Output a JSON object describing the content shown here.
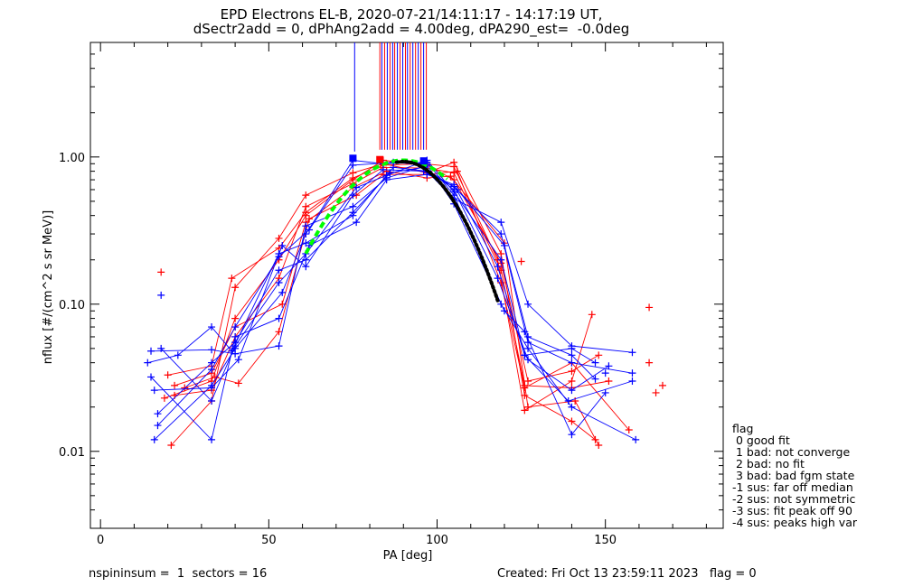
{
  "title_line1": "EPD Electrons EL-B, 2020-07-21/14:11:17 - 14:17:19 UT,",
  "title_line2": "dSectr2add = 0, dPhAng2add = 4.00deg, dPA290_est=  -0.0deg",
  "footer": {
    "left": "nspininsum =  1  sectors = 16",
    "right": "Created: Fri Oct 13 23:59:11 2023   flag = 0"
  },
  "legend": {
    "title": "flag",
    "items": [
      " 0 good fit",
      " 1 bad: not converge",
      " 2 bad: no fit",
      " 3 bad: bad fgm state",
      "-1 sus: far off median",
      "-2 sus: not symmetric",
      "-3 sus: fit peak off 90",
      "-4 sus: peaks high var"
    ]
  },
  "colors": {
    "red": "#ff0000",
    "blue": "#0000ff",
    "green": "#00ff00",
    "black": "#000000"
  },
  "chart_data": {
    "type": "line",
    "xlabel": "PA [deg]",
    "ylabel": "nflux [#/(cm^2 s sr MeV)]",
    "xlim": [
      -3,
      185
    ],
    "ylim": [
      0.003,
      6
    ],
    "ylog": true,
    "xticks": [
      0,
      50,
      100,
      150
    ],
    "xtick_labels": [
      "0",
      "50",
      "100",
      "150"
    ],
    "yticks": [
      0.01,
      0.1,
      1.0
    ],
    "ytick_labels": [
      "0.01",
      "0.10",
      "1.00"
    ],
    "series": [
      {
        "color": "red",
        "points": [
          [
            22,
            0.024
          ],
          [
            33,
            0.026
          ],
          [
            40,
            0.06
          ],
          [
            53,
            0.15
          ],
          [
            61,
            0.46
          ],
          [
            75,
            0.66
          ],
          [
            84,
            0.85
          ],
          [
            97,
            0.84
          ],
          [
            105,
            0.78
          ],
          [
            119,
            0.17
          ],
          [
            126,
            0.028
          ],
          [
            140,
            0.027
          ],
          [
            151,
            0.03
          ]
        ]
      },
      {
        "color": "red",
        "points": [
          [
            21,
            0.011
          ],
          [
            33,
            0.022
          ],
          [
            40,
            0.13
          ],
          [
            53,
            0.28
          ],
          [
            61,
            0.55
          ],
          [
            75,
            0.78
          ],
          [
            84,
            0.9
          ],
          [
            97,
            0.78
          ],
          [
            105,
            0.92
          ],
          [
            119,
            0.22
          ],
          [
            126,
            0.024
          ],
          [
            140,
            0.016
          ],
          [
            147,
            0.012
          ]
        ]
      },
      {
        "color": "red",
        "points": [
          [
            19,
            0.023
          ],
          [
            33,
            0.03
          ],
          [
            40,
            0.08
          ],
          [
            53,
            0.2
          ],
          [
            61,
            0.4
          ],
          [
            75,
            0.7
          ],
          [
            84,
            0.95
          ],
          [
            97,
            0.88
          ],
          [
            105,
            0.7
          ],
          [
            119,
            0.19
          ],
          [
            127,
            0.03
          ],
          [
            140,
            0.035
          ],
          [
            148,
            0.045
          ]
        ]
      },
      {
        "color": "red",
        "points": [
          [
            22,
            0.028
          ],
          [
            33,
            0.034
          ],
          [
            40,
            0.07
          ],
          [
            54,
            0.1
          ],
          [
            61,
            0.36
          ],
          [
            75,
            0.62
          ],
          [
            85,
            0.8
          ],
          [
            97,
            0.72
          ],
          [
            104,
            0.74
          ],
          [
            120,
            0.26
          ],
          [
            127,
            0.02
          ],
          [
            141,
            0.022
          ],
          [
            148,
            0.011
          ]
        ]
      },
      {
        "color": "red",
        "points": [
          [
            20,
            0.033
          ],
          [
            33,
            0.038
          ],
          [
            39,
            0.15
          ],
          [
            53,
            0.24
          ],
          [
            61,
            0.42
          ],
          [
            75,
            0.72
          ],
          [
            84,
            0.88
          ],
          [
            96,
            0.9
          ],
          [
            105,
            0.86
          ],
          [
            118,
            0.2
          ],
          [
            126,
            0.019
          ],
          [
            140,
            0.03
          ],
          [
            146,
            0.085
          ]
        ]
      },
      {
        "color": "red",
        "points": [
          [
            25,
            0.027
          ],
          [
            34,
            0.032
          ],
          [
            41,
            0.029
          ],
          [
            53,
            0.065
          ],
          [
            62,
            0.38
          ],
          [
            76,
            0.55
          ],
          [
            84,
            0.76
          ],
          [
            97,
            0.76
          ],
          [
            106,
            0.8
          ],
          [
            119,
            0.14
          ],
          [
            126,
            0.027
          ],
          [
            140,
            0.04
          ],
          [
            157,
            0.014
          ]
        ]
      },
      {
        "color": "blue",
        "points": [
          [
            14,
            0.04
          ],
          [
            23,
            0.045
          ],
          [
            33,
            0.07
          ],
          [
            39,
            0.048
          ],
          [
            53,
            0.22
          ],
          [
            61,
            0.26
          ],
          [
            75,
            0.4
          ],
          [
            87,
            0.85
          ],
          [
            97,
            0.8
          ],
          [
            105,
            0.52
          ],
          [
            119,
            0.36
          ],
          [
            127,
            0.1
          ],
          [
            140,
            0.052
          ],
          [
            158,
            0.047
          ]
        ]
      },
      {
        "color": "blue",
        "points": [
          [
            16,
            0.012
          ],
          [
            33,
            0.028
          ],
          [
            40,
            0.05
          ],
          [
            54,
            0.12
          ],
          [
            61,
            0.3
          ],
          [
            75,
            0.95
          ],
          [
            84,
            0.9
          ],
          [
            97,
            0.92
          ],
          [
            105,
            0.55
          ],
          [
            119,
            0.1
          ],
          [
            127,
            0.05
          ],
          [
            140,
            0.02
          ],
          [
            159,
            0.012
          ]
        ]
      },
      {
        "color": "blue",
        "points": [
          [
            17,
            0.018
          ],
          [
            33,
            0.04
          ],
          [
            40,
            0.055
          ],
          [
            53,
            0.17
          ],
          [
            61,
            0.2
          ],
          [
            75,
            0.42
          ],
          [
            86,
            0.78
          ],
          [
            96,
            0.85
          ],
          [
            106,
            0.6
          ],
          [
            120,
            0.25
          ],
          [
            127,
            0.06
          ],
          [
            140,
            0.045
          ],
          [
            147,
            0.031
          ]
        ]
      },
      {
        "color": "blue",
        "points": [
          [
            15,
            0.032
          ],
          [
            33,
            0.012
          ],
          [
            40,
            0.06
          ],
          [
            53,
            0.08
          ],
          [
            62,
            0.25
          ],
          [
            76,
            0.36
          ],
          [
            85,
            0.7
          ],
          [
            97,
            0.76
          ],
          [
            105,
            0.65
          ],
          [
            118,
            0.18
          ],
          [
            126,
            0.045
          ],
          [
            139,
            0.022
          ],
          [
            158,
            0.03
          ]
        ]
      },
      {
        "color": "blue",
        "points": [
          [
            16,
            0.026
          ],
          [
            33,
            0.027
          ],
          [
            41,
            0.042
          ],
          [
            54,
            0.25
          ],
          [
            61,
            0.18
          ],
          [
            75,
            0.55
          ],
          [
            84,
            0.82
          ],
          [
            96,
            0.8
          ],
          [
            105,
            0.63
          ],
          [
            119,
            0.3
          ],
          [
            127,
            0.055
          ],
          [
            140,
            0.04
          ],
          [
            158,
            0.034
          ]
        ]
      },
      {
        "color": "blue",
        "points": [
          [
            17,
            0.015
          ],
          [
            33,
            0.036
          ],
          [
            40,
            0.07
          ],
          [
            53,
            0.21
          ],
          [
            62,
            0.32
          ],
          [
            75,
            0.88
          ],
          [
            87,
            0.92
          ],
          [
            97,
            0.88
          ],
          [
            105,
            0.48
          ],
          [
            120,
            0.09
          ],
          [
            126,
            0.065
          ],
          [
            140,
            0.013
          ],
          [
            150,
            0.025
          ]
        ]
      },
      {
        "color": "blue",
        "points": [
          [
            18,
            0.05
          ],
          [
            33,
            0.022
          ],
          [
            40,
            0.052
          ],
          [
            53,
            0.14
          ],
          [
            61,
            0.22
          ],
          [
            76,
            0.62
          ],
          [
            85,
            0.75
          ],
          [
            97,
            0.95
          ],
          [
            105,
            0.58
          ],
          [
            119,
            0.2
          ],
          [
            126,
            0.045
          ],
          [
            140,
            0.05
          ],
          [
            147,
            0.04
          ]
        ]
      },
      {
        "color": "blue",
        "points": [
          [
            15,
            0.048
          ],
          [
            33,
            0.049
          ],
          [
            40,
            0.046
          ],
          [
            53,
            0.052
          ],
          [
            61,
            0.34
          ],
          [
            75,
            0.46
          ],
          [
            85,
            0.72
          ],
          [
            96,
            0.86
          ],
          [
            105,
            0.6
          ],
          [
            118,
            0.15
          ],
          [
            127,
            0.042
          ],
          [
            140,
            0.026
          ],
          [
            151,
            0.038
          ]
        ]
      }
    ],
    "outlier_markers": [
      {
        "color": "red",
        "x": 18,
        "y": 0.165
      },
      {
        "color": "blue",
        "x": 18,
        "y": 0.115
      },
      {
        "color": "red",
        "x": 163,
        "y": 0.095
      },
      {
        "color": "red",
        "x": 163,
        "y": 0.04
      },
      {
        "color": "red",
        "x": 167,
        "y": 0.028
      },
      {
        "color": "red",
        "x": 165,
        "y": 0.025
      },
      {
        "color": "blue",
        "x": 150,
        "y": 0.034
      },
      {
        "color": "red",
        "x": 125,
        "y": 0.195
      }
    ],
    "fit_curves": [
      {
        "color": "green",
        "style": "dashed",
        "x_range": [
          61,
          103
        ],
        "peak_x": 90,
        "peak_y": 0.95,
        "width": 24
      },
      {
        "color": "black",
        "style": "dotted",
        "x_range": [
          88,
          118
        ],
        "peak_x": 90,
        "peak_y": 0.93,
        "width": 19
      }
    ],
    "peak_markers": [
      {
        "color": "red",
        "x": 83,
        "y": 0.96
      },
      {
        "color": "blue",
        "x": 75,
        "y": 0.98
      },
      {
        "color": "blue",
        "x": 96,
        "y": 0.94
      }
    ],
    "vertical_markers": {
      "y_from": 1.12,
      "lines": [
        {
          "x": 75.5,
          "color": "blue",
          "full": true
        },
        {
          "x": 83.0,
          "color": "red"
        },
        {
          "x": 83.6,
          "color": "blue"
        },
        {
          "x": 84.4,
          "color": "red"
        },
        {
          "x": 85.2,
          "color": "blue"
        },
        {
          "x": 86.0,
          "color": "red"
        },
        {
          "x": 86.8,
          "color": "blue"
        },
        {
          "x": 87.4,
          "color": "red"
        },
        {
          "x": 88.2,
          "color": "blue"
        },
        {
          "x": 89.0,
          "color": "red"
        },
        {
          "x": 89.8,
          "color": "blue"
        },
        {
          "x": 90.6,
          "color": "red"
        },
        {
          "x": 91.2,
          "color": "blue"
        },
        {
          "x": 92.0,
          "color": "red"
        },
        {
          "x": 92.8,
          "color": "blue"
        },
        {
          "x": 93.6,
          "color": "red"
        },
        {
          "x": 94.4,
          "color": "blue"
        },
        {
          "x": 95.2,
          "color": "red"
        },
        {
          "x": 96.0,
          "color": "blue"
        },
        {
          "x": 96.8,
          "color": "red"
        }
      ]
    },
    "grid": false,
    "legend_position": "right-bottom, outside plot"
  }
}
